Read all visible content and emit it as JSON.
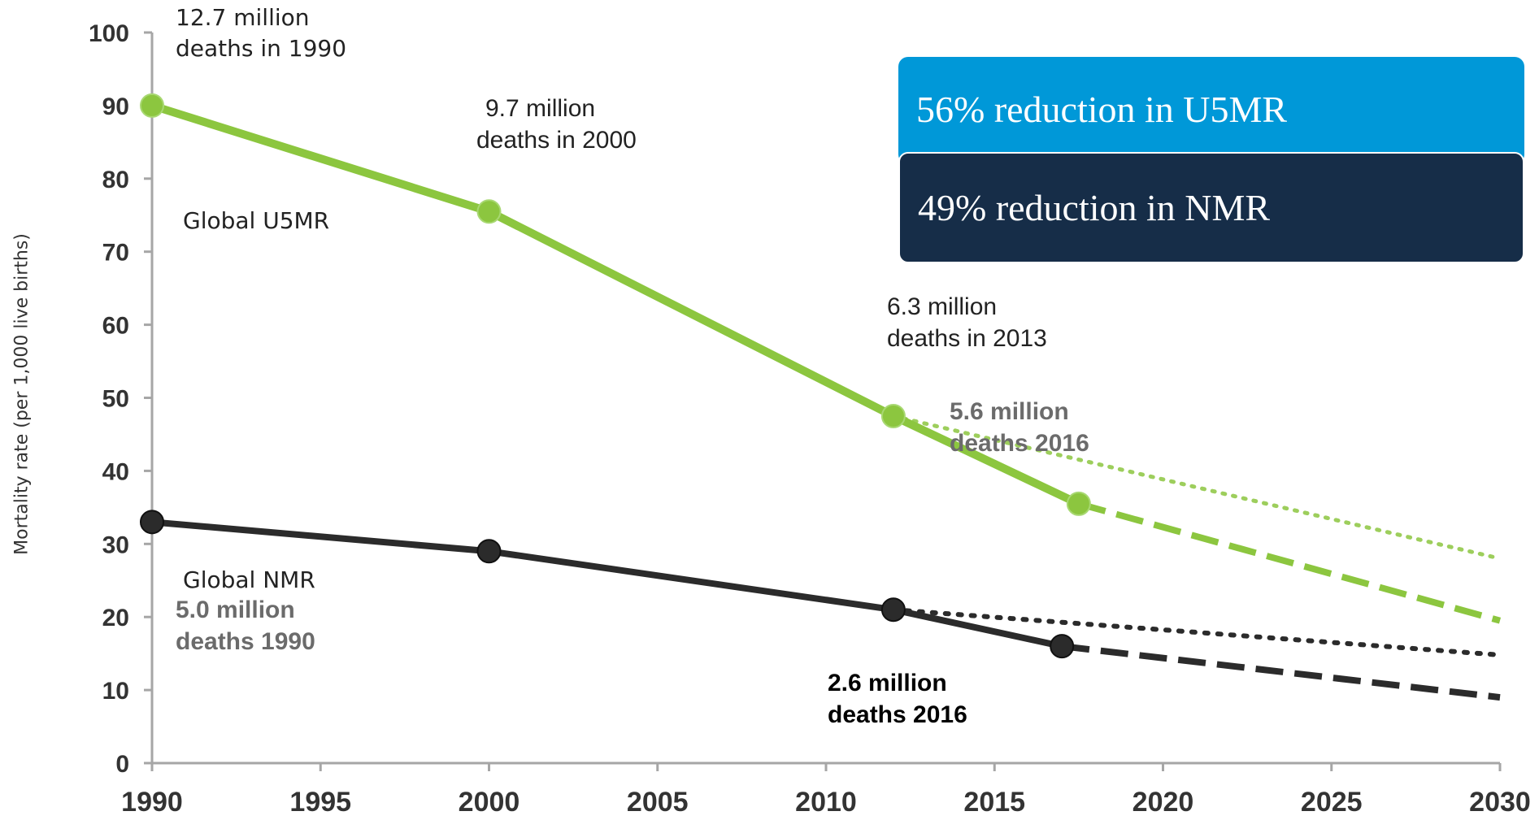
{
  "chart_data": {
    "type": "line",
    "ylabel": "Mortality rate (per 1,000 live births)",
    "xlabel": "",
    "title": "",
    "xlim": [
      1990,
      2030
    ],
    "ylim": [
      0,
      100
    ],
    "xticks": [
      1990,
      1995,
      2000,
      2005,
      2010,
      2015,
      2020,
      2025,
      2030
    ],
    "yticks": [
      0,
      10,
      20,
      30,
      40,
      50,
      60,
      70,
      80,
      90,
      100
    ],
    "grid": false,
    "colors": {
      "u5mr": "#8cc63f",
      "nmr": "#2b2b2b",
      "u5mr_box": "#0098d8",
      "nmr_box": "#162d48"
    },
    "series": [
      {
        "name": "Global U5MR",
        "x": [
          1990,
          2000,
          2012,
          2017.5
        ],
        "values": [
          90,
          75.5,
          47.5,
          35.5
        ],
        "projection_dashed": {
          "x": [
            2017.5,
            2030
          ],
          "values": [
            35.5,
            19.5
          ]
        },
        "projection_dotted": {
          "x": [
            2012,
            2030
          ],
          "values": [
            47.5,
            28
          ]
        }
      },
      {
        "name": "Global NMR",
        "x": [
          1990,
          2000,
          2012,
          2017
        ],
        "values": [
          33,
          29,
          21,
          16
        ],
        "projection_dashed": {
          "x": [
            2017,
            2030
          ],
          "values": [
            16,
            9
          ]
        },
        "projection_dotted": {
          "x": [
            2012,
            2030
          ],
          "values": [
            21,
            14.8
          ]
        }
      }
    ],
    "annotations": [
      {
        "id": "u5mr-1990",
        "lines": [
          "12.7 million",
          "deaths in 1990"
        ]
      },
      {
        "id": "u5mr-2000",
        "lines": [
          "9.7 million",
          "deaths in 2000"
        ]
      },
      {
        "id": "u5mr-2013",
        "lines": [
          "6.3 million",
          "deaths in 2013"
        ]
      },
      {
        "id": "u5mr-2016",
        "lines": [
          "5.6 million",
          "deaths 2016"
        ]
      },
      {
        "id": "nmr-1990",
        "lines": [
          "5.0 million",
          "deaths 1990"
        ]
      },
      {
        "id": "nmr-2016",
        "lines": [
          "2.6 million",
          "deaths 2016"
        ]
      }
    ],
    "callouts": {
      "u5mr": "56% reduction in U5MR",
      "nmr": "49% reduction in NMR"
    }
  }
}
